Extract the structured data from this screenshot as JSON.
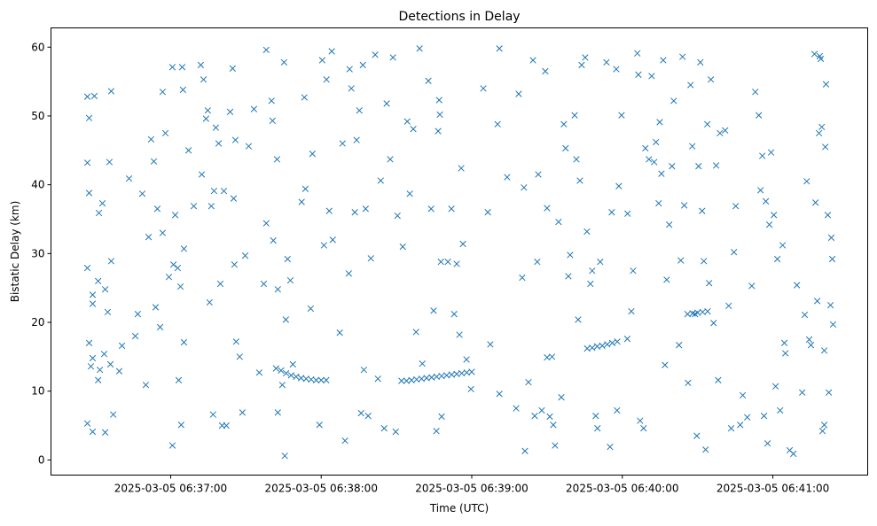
{
  "chart_data": {
    "type": "scatter",
    "title": "Detections in Delay",
    "xlabel": "Time (UTC)",
    "ylabel": "Bistatic Delay (km)",
    "x_unit": "seconds after 2025-03-05 06:36:00",
    "xlim": [
      12.3,
      337.8
    ],
    "ylim": [
      -2.2,
      62.8
    ],
    "grid": false,
    "marker": "x",
    "color": "#1f77b4",
    "xticks": [
      {
        "value": 60,
        "label": "2025-03-05 06:37:00"
      },
      {
        "value": 120,
        "label": "2025-03-05 06:38:00"
      },
      {
        "value": 180,
        "label": "2025-03-05 06:39:00"
      },
      {
        "value": 240,
        "label": "2025-03-05 06:40:00"
      },
      {
        "value": 300,
        "label": "2025-03-05 06:41:00"
      }
    ],
    "yticks": [
      {
        "value": 0,
        "label": "0"
      },
      {
        "value": 10,
        "label": "10"
      },
      {
        "value": 20,
        "label": "20"
      },
      {
        "value": 30,
        "label": "30"
      },
      {
        "value": 40,
        "label": "40"
      },
      {
        "value": 50,
        "label": "50"
      },
      {
        "value": 60,
        "label": "60"
      }
    ],
    "points": [
      [
        26.8,
        52.8
      ],
      [
        27.5,
        49.7
      ],
      [
        26.8,
        43.2
      ],
      [
        27.5,
        38.8
      ],
      [
        26.8,
        27.9
      ],
      [
        27.5,
        17.0
      ],
      [
        28.2,
        13.6
      ],
      [
        28.9,
        14.8
      ],
      [
        28.9,
        24.0
      ],
      [
        28.9,
        22.7
      ],
      [
        28.9,
        4.1
      ],
      [
        26.8,
        5.3
      ],
      [
        29.6,
        52.9
      ],
      [
        31.1,
        26.0
      ],
      [
        31.4,
        35.9
      ],
      [
        32.8,
        37.3
      ],
      [
        33.9,
        24.8
      ],
      [
        34.9,
        21.5
      ],
      [
        35.6,
        43.3
      ],
      [
        36.3,
        28.9
      ],
      [
        36.3,
        53.6
      ],
      [
        37.1,
        6.6
      ],
      [
        33.9,
        4.0
      ],
      [
        31.1,
        11.6
      ],
      [
        31.8,
        13.1
      ],
      [
        33.5,
        15.4
      ],
      [
        36.0,
        13.9
      ],
      [
        39.5,
        12.9
      ],
      [
        40.6,
        16.6
      ],
      [
        43.4,
        40.9
      ],
      [
        45.9,
        18.0
      ],
      [
        46.9,
        21.2
      ],
      [
        48.7,
        38.7
      ],
      [
        50.1,
        10.9
      ],
      [
        51.2,
        32.4
      ],
      [
        52.2,
        46.6
      ],
      [
        53.3,
        43.4
      ],
      [
        54.0,
        22.2
      ],
      [
        54.7,
        36.5
      ],
      [
        55.8,
        19.3
      ],
      [
        56.8,
        53.5
      ],
      [
        57.9,
        47.5
      ],
      [
        56.8,
        33.0
      ],
      [
        59.3,
        26.6
      ],
      [
        60.7,
        2.1
      ],
      [
        60.7,
        57.1
      ],
      [
        61.1,
        28.4
      ],
      [
        61.8,
        35.6
      ],
      [
        62.8,
        27.9
      ],
      [
        63.2,
        11.6
      ],
      [
        63.9,
        25.2
      ],
      [
        64.2,
        5.1
      ],
      [
        64.6,
        57.1
      ],
      [
        64.9,
        53.8
      ],
      [
        65.3,
        17.1
      ],
      [
        65.3,
        30.7
      ],
      [
        67.1,
        45.0
      ],
      [
        69.2,
        36.9
      ],
      [
        72.0,
        57.4
      ],
      [
        72.4,
        41.5
      ],
      [
        73.1,
        55.3
      ],
      [
        74.1,
        49.6
      ],
      [
        74.8,
        50.8
      ],
      [
        75.5,
        22.9
      ],
      [
        76.2,
        36.9
      ],
      [
        76.9,
        6.6
      ],
      [
        77.3,
        39.1
      ],
      [
        78.0,
        48.3
      ],
      [
        79.1,
        46.0
      ],
      [
        79.8,
        25.6
      ],
      [
        80.5,
        5.0
      ],
      [
        81.2,
        39.1
      ],
      [
        82.2,
        5.0
      ],
      [
        83.7,
        50.6
      ],
      [
        84.7,
        56.9
      ],
      [
        85.1,
        38.0
      ],
      [
        85.4,
        28.4
      ],
      [
        85.8,
        46.5
      ],
      [
        86.1,
        17.2
      ],
      [
        87.5,
        15.0
      ],
      [
        88.6,
        6.9
      ],
      [
        89.7,
        29.7
      ],
      [
        91.1,
        45.6
      ],
      [
        93.2,
        51.0
      ],
      [
        95.3,
        12.7
      ],
      [
        97.1,
        25.6
      ],
      [
        98.1,
        59.6
      ],
      [
        98.1,
        34.4
      ],
      [
        100.2,
        52.2
      ],
      [
        100.6,
        49.3
      ],
      [
        100.9,
        31.9
      ],
      [
        102.4,
        43.7
      ],
      [
        102.7,
        24.8
      ],
      [
        102.7,
        6.9
      ],
      [
        104.5,
        10.9
      ],
      [
        105.2,
        57.8
      ],
      [
        105.9,
        20.4
      ],
      [
        106.6,
        29.2
      ],
      [
        107.7,
        26.1
      ],
      [
        105.5,
        0.6
      ],
      [
        108.7,
        13.9
      ],
      [
        112.2,
        37.5
      ],
      [
        113.7,
        39.4
      ],
      [
        113.3,
        52.7
      ],
      [
        115.8,
        22.0
      ],
      [
        116.5,
        44.5
      ],
      [
        119.3,
        5.1
      ],
      [
        120.4,
        58.1
      ],
      [
        121.1,
        31.2
      ],
      [
        122.1,
        55.3
      ],
      [
        123.2,
        36.2
      ],
      [
        124.2,
        59.4
      ],
      [
        124.6,
        32.0
      ],
      [
        127.4,
        18.5
      ],
      [
        128.5,
        46.0
      ],
      [
        129.5,
        2.8
      ],
      [
        131.0,
        27.1
      ],
      [
        131.3,
        56.8
      ],
      [
        132.0,
        54.0
      ],
      [
        133.4,
        36.0
      ],
      [
        134.1,
        46.5
      ],
      [
        135.2,
        50.8
      ],
      [
        135.9,
        6.8
      ],
      [
        136.6,
        57.4
      ],
      [
        137.0,
        13.1
      ],
      [
        137.7,
        36.5
      ],
      [
        138.7,
        6.4
      ],
      [
        139.8,
        29.3
      ],
      [
        141.5,
        58.9
      ],
      [
        142.6,
        11.8
      ],
      [
        143.7,
        40.6
      ],
      [
        145.1,
        4.6
      ],
      [
        146.1,
        51.8
      ],
      [
        147.5,
        43.7
      ],
      [
        148.6,
        58.5
      ],
      [
        149.7,
        4.1
      ],
      [
        150.4,
        35.5
      ],
      [
        152.5,
        31.0
      ],
      [
        154.3,
        49.2
      ],
      [
        155.3,
        38.7
      ],
      [
        156.7,
        48.1
      ],
      [
        157.8,
        18.6
      ],
      [
        159.2,
        59.8
      ],
      [
        160.3,
        14.0
      ],
      [
        162.7,
        55.1
      ],
      [
        163.8,
        36.5
      ],
      [
        164.8,
        21.7
      ],
      [
        165.9,
        4.2
      ],
      [
        166.6,
        47.8
      ],
      [
        167.0,
        52.3
      ],
      [
        167.3,
        50.2
      ],
      [
        167.7,
        28.8
      ],
      [
        168.0,
        6.3
      ],
      [
        170.5,
        28.8
      ],
      [
        171.9,
        36.5
      ],
      [
        173.0,
        21.2
      ],
      [
        174.0,
        28.5
      ],
      [
        175.1,
        18.2
      ],
      [
        175.8,
        42.4
      ],
      [
        176.5,
        31.4
      ],
      [
        177.9,
        14.6
      ],
      [
        179.7,
        10.3
      ],
      [
        184.6,
        54.0
      ],
      [
        186.4,
        36.0
      ],
      [
        187.4,
        16.8
      ],
      [
        190.3,
        48.8
      ],
      [
        191.0,
        9.6
      ],
      [
        191.0,
        59.8
      ],
      [
        194.1,
        41.1
      ],
      [
        197.7,
        7.5
      ],
      [
        198.7,
        53.2
      ],
      [
        200.1,
        26.5
      ],
      [
        200.8,
        39.6
      ],
      [
        201.2,
        1.3
      ],
      [
        202.6,
        11.3
      ],
      [
        204.4,
        58.1
      ],
      [
        205.1,
        6.4
      ],
      [
        206.1,
        28.8
      ],
      [
        206.5,
        41.5
      ],
      [
        207.9,
        7.2
      ],
      [
        209.3,
        56.5
      ],
      [
        210.0,
        36.6
      ],
      [
        211.1,
        6.3
      ],
      [
        212.5,
        5.1
      ],
      [
        213.2,
        2.1
      ],
      [
        214.6,
        34.6
      ],
      [
        215.7,
        9.1
      ],
      [
        216.7,
        48.8
      ],
      [
        217.4,
        45.3
      ],
      [
        218.5,
        26.7
      ],
      [
        219.2,
        29.8
      ],
      [
        221.0,
        50.1
      ],
      [
        221.7,
        43.7
      ],
      [
        222.4,
        20.4
      ],
      [
        223.1,
        40.6
      ],
      [
        223.8,
        57.4
      ],
      [
        225.2,
        58.5
      ],
      [
        225.9,
        33.2
      ],
      [
        227.3,
        25.6
      ],
      [
        228.0,
        27.5
      ],
      [
        229.4,
        6.4
      ],
      [
        230.1,
        4.6
      ],
      [
        231.2,
        28.8
      ],
      [
        233.7,
        57.8
      ],
      [
        235.1,
        1.9
      ],
      [
        235.8,
        36.0
      ],
      [
        237.6,
        56.8
      ],
      [
        237.9,
        7.2
      ],
      [
        238.6,
        39.8
      ],
      [
        239.7,
        50.1
      ],
      [
        242.1,
        35.8
      ],
      [
        243.6,
        21.6
      ],
      [
        244.3,
        27.5
      ],
      [
        246.0,
        59.1
      ],
      [
        246.4,
        56.0
      ],
      [
        247.1,
        5.7
      ],
      [
        248.5,
        4.6
      ],
      [
        249.2,
        45.3
      ],
      [
        250.6,
        43.7
      ],
      [
        251.7,
        55.8
      ],
      [
        252.7,
        43.3
      ],
      [
        253.4,
        46.2
      ],
      [
        254.5,
        37.3
      ],
      [
        254.9,
        49.1
      ],
      [
        255.6,
        41.6
      ],
      [
        256.3,
        58.1
      ],
      [
        257.0,
        13.8
      ],
      [
        257.7,
        26.2
      ],
      [
        258.7,
        34.2
      ],
      [
        259.8,
        42.7
      ],
      [
        260.5,
        52.2
      ],
      [
        262.6,
        16.7
      ],
      [
        263.3,
        29.0
      ],
      [
        264.0,
        58.6
      ],
      [
        264.7,
        37.0
      ],
      [
        266.2,
        11.2
      ],
      [
        267.2,
        54.5
      ],
      [
        267.9,
        45.6
      ],
      [
        269.0,
        21.2
      ],
      [
        269.7,
        3.5
      ],
      [
        270.4,
        42.7
      ],
      [
        271.1,
        57.8
      ],
      [
        271.8,
        36.2
      ],
      [
        272.5,
        28.9
      ],
      [
        273.2,
        1.5
      ],
      [
        273.9,
        48.8
      ],
      [
        274.6,
        25.7
      ],
      [
        275.3,
        55.3
      ],
      [
        276.4,
        19.9
      ],
      [
        277.4,
        42.8
      ],
      [
        278.2,
        11.6
      ],
      [
        278.9,
        47.5
      ],
      [
        281.0,
        47.9
      ],
      [
        282.4,
        22.4
      ],
      [
        283.4,
        4.6
      ],
      [
        284.5,
        30.2
      ],
      [
        285.2,
        36.9
      ],
      [
        287.0,
        5.1
      ],
      [
        288.0,
        9.4
      ],
      [
        289.8,
        6.2
      ],
      [
        291.6,
        25.3
      ],
      [
        293.0,
        53.5
      ],
      [
        294.4,
        50.1
      ],
      [
        295.1,
        39.2
      ],
      [
        295.8,
        44.2
      ],
      [
        296.5,
        6.4
      ],
      [
        297.2,
        37.6
      ],
      [
        297.9,
        2.4
      ],
      [
        298.6,
        34.2
      ],
      [
        299.3,
        44.7
      ],
      [
        300.4,
        35.6
      ],
      [
        301.1,
        10.7
      ],
      [
        301.8,
        29.2
      ],
      [
        302.9,
        7.2
      ],
      [
        303.9,
        31.2
      ],
      [
        304.6,
        17.0
      ],
      [
        305.0,
        15.5
      ],
      [
        306.7,
        1.4
      ],
      [
        308.2,
        0.9
      ],
      [
        309.6,
        25.4
      ],
      [
        311.7,
        9.8
      ],
      [
        312.7,
        21.1
      ],
      [
        313.5,
        40.5
      ],
      [
        314.5,
        17.5
      ],
      [
        315.2,
        16.7
      ],
      [
        316.6,
        59.0
      ],
      [
        317.0,
        37.4
      ],
      [
        317.7,
        23.1
      ],
      [
        318.4,
        47.5
      ],
      [
        319.1,
        58.3
      ],
      [
        319.5,
        48.4
      ],
      [
        319.8,
        4.2
      ],
      [
        320.5,
        5.1
      ],
      [
        320.9,
        45.5
      ],
      [
        321.2,
        54.6
      ],
      [
        321.9,
        35.6
      ],
      [
        322.3,
        9.8
      ],
      [
        323.0,
        22.5
      ],
      [
        323.3,
        32.3
      ],
      [
        323.7,
        29.2
      ],
      [
        324.0,
        19.7
      ],
      [
        320.5,
        15.9
      ],
      [
        318.7,
        58.7
      ],
      [
        102,
        13.3
      ],
      [
        104,
        13.0
      ],
      [
        106,
        12.6
      ],
      [
        108,
        12.3
      ],
      [
        110,
        12.1
      ],
      [
        112,
        11.9
      ],
      [
        114,
        11.8
      ],
      [
        116,
        11.7
      ],
      [
        118,
        11.6
      ],
      [
        120,
        11.6
      ],
      [
        122,
        11.6
      ],
      [
        152,
        11.5
      ],
      [
        154,
        11.5
      ],
      [
        156,
        11.6
      ],
      [
        158,
        11.7
      ],
      [
        160,
        11.8
      ],
      [
        162,
        11.9
      ],
      [
        164,
        12.0
      ],
      [
        166,
        12.1
      ],
      [
        168,
        12.2
      ],
      [
        170,
        12.3
      ],
      [
        172,
        12.4
      ],
      [
        174,
        12.5
      ],
      [
        176,
        12.6
      ],
      [
        178,
        12.7
      ],
      [
        180,
        12.8
      ],
      [
        210,
        14.9
      ],
      [
        212,
        15.0
      ],
      [
        226,
        16.2
      ],
      [
        228,
        16.3
      ],
      [
        230,
        16.5
      ],
      [
        232,
        16.6
      ],
      [
        234,
        16.8
      ],
      [
        236,
        17.0
      ],
      [
        238,
        17.2
      ],
      [
        242,
        17.6
      ],
      [
        266,
        21.2
      ],
      [
        268,
        21.3
      ],
      [
        270,
        21.4
      ],
      [
        272,
        21.5
      ],
      [
        274,
        21.6
      ]
    ]
  }
}
